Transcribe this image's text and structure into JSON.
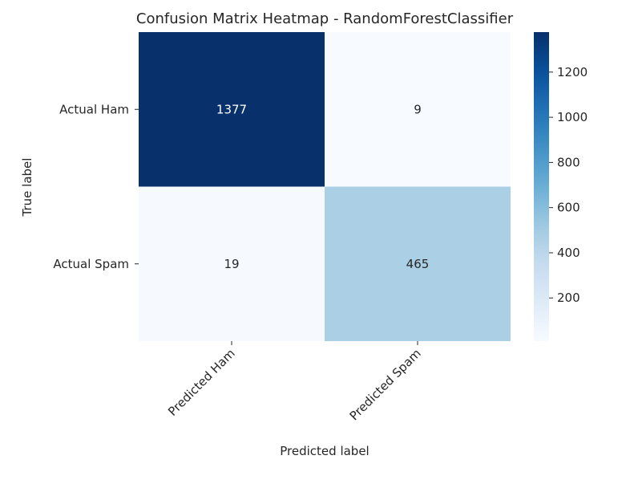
{
  "chart_data": {
    "type": "heatmap",
    "title": "Confusion Matrix Heatmap - RandomForestClassifier",
    "xlabel": "Predicted label",
    "ylabel": "True label",
    "x_categories": [
      "Predicted Ham",
      "Predicted Spam"
    ],
    "y_categories": [
      "Actual Ham",
      "Actual Spam"
    ],
    "values": [
      [
        1377,
        9
      ],
      [
        19,
        465
      ]
    ],
    "colormap": "Blues",
    "colors": {
      "low": "#f7fbff",
      "high": "#08306b",
      "text_dark": "#262626",
      "text_light": "#ffffff"
    },
    "colorbar": {
      "vmin": 9,
      "vmax": 1377,
      "ticks": [
        200,
        400,
        600,
        800,
        1000,
        1200
      ],
      "tick_labels": [
        "200",
        "400",
        "600",
        "800",
        "1000",
        "1200"
      ]
    }
  }
}
